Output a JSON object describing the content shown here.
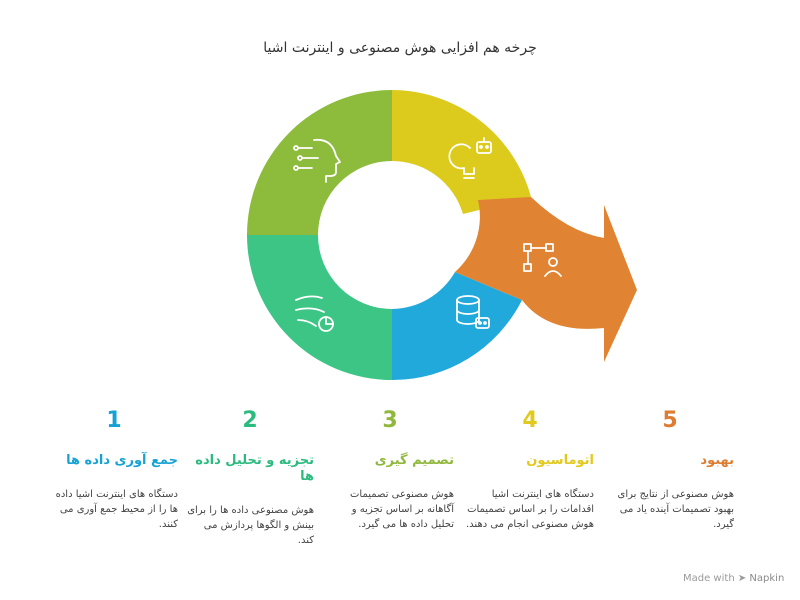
{
  "title": "چرخه هم افزایی هوش مصنوعی و اینترنت اشیا",
  "colors": {
    "data_collection": "#16a2d5",
    "analysis": "#2cbb7e",
    "decision": "#8fb83c",
    "automation": "#e2c91d",
    "improvement": "#de7c31"
  },
  "segments": [
    {
      "icon": "database-robot-icon",
      "color": "#22a9dc"
    },
    {
      "icon": "airflow-chart-icon",
      "color": "#3cc585"
    },
    {
      "icon": "ai-head-circuit-icon",
      "color": "#8dbb3c"
    },
    {
      "icon": "lightbulb-robot-icon",
      "color": "#dccb1c"
    },
    {
      "icon": "network-person-icon",
      "color": "#e08332"
    }
  ],
  "steps": [
    {
      "number": "1",
      "heading": "جمع آوری داده ها",
      "description": "دستگاه های اینترنت اشیا داده ها را از محیط جمع آوری می کنند."
    },
    {
      "number": "2",
      "heading": "تجزیه و تحلیل داده ها",
      "description": "هوش مصنوعی داده ها را برای بینش و الگوها پردازش می کند."
    },
    {
      "number": "3",
      "heading": "تصمیم گیری",
      "description": "هوش مصنوعی تصمیمات آگاهانه بر اساس تجزیه و تحلیل داده ها می گیرد."
    },
    {
      "number": "4",
      "heading": "اتوماسیون",
      "description": "دستگاه های اینترنت اشیا اقدامات را بر اساس تصمیمات هوش مصنوعی انجام می دهند."
    },
    {
      "number": "5",
      "heading": "بهبود",
      "description": "هوش مصنوعی از نتایج برای بهبود تصمیمات آینده یاد می گیرد."
    }
  ],
  "footer": {
    "made_with": "Made with",
    "brand": "Napkin"
  }
}
